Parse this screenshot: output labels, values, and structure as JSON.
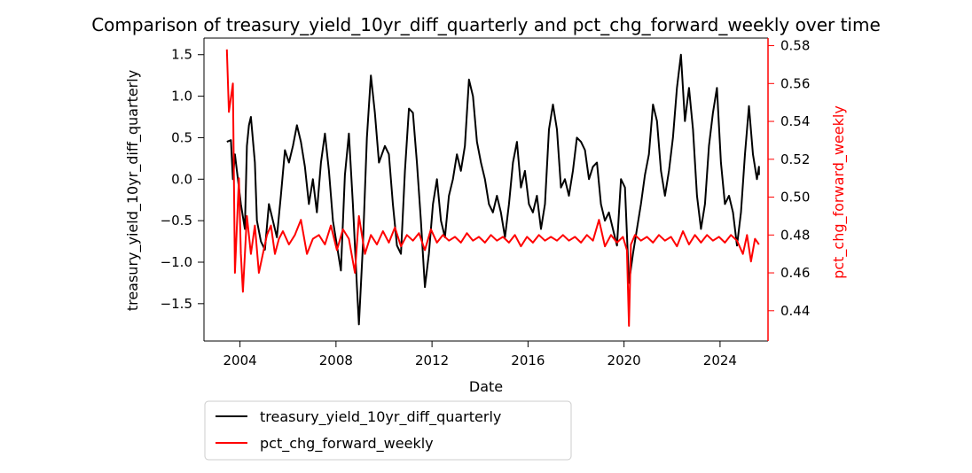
{
  "chart_data": {
    "type": "line",
    "title": "Comparison of treasury_yield_10yr_diff_quarterly and pct_chg_forward_weekly over time",
    "xlabel": "Date",
    "ylabel_left": "treasury_yield_10yr_diff_quarterly",
    "ylabel_right": "pct_chg_forward_weekly",
    "x_range": [
      "2002-07-01",
      "2025-12-31"
    ],
    "y_left_range": [
      -1.95,
      1.7
    ],
    "y_right_range": [
      0.424,
      0.584
    ],
    "x_ticks": [
      "2004",
      "2008",
      "2012",
      "2016",
      "2020",
      "2024"
    ],
    "y_left_ticks": [
      "−1.5",
      "−1.0",
      "−0.5",
      "0.0",
      "0.5",
      "1.0",
      "1.5"
    ],
    "y_right_ticks": [
      "0.44",
      "0.46",
      "0.48",
      "0.50",
      "0.52",
      "0.54",
      "0.56",
      "0.58"
    ],
    "grid": false,
    "legend_position": "below-left",
    "colors": {
      "left_series": "#000000",
      "right_series": "#ff0000",
      "right_axis": "#ff0000"
    },
    "series": [
      {
        "name": "treasury_yield_10yr_diff_quarterly",
        "axis": "left",
        "color": "#000000",
        "points": [
          [
            "2003-06",
            0.45
          ],
          [
            "2003-08",
            0.47
          ],
          [
            "2003-09",
            0.0
          ],
          [
            "2003-10",
            0.3
          ],
          [
            "2003-12",
            -0.1
          ],
          [
            "2004-01",
            -0.3
          ],
          [
            "2004-03",
            -0.6
          ],
          [
            "2004-04",
            0.4
          ],
          [
            "2004-05",
            0.65
          ],
          [
            "2004-06",
            0.75
          ],
          [
            "2004-08",
            0.2
          ],
          [
            "2004-09",
            -0.5
          ],
          [
            "2004-11",
            -0.75
          ],
          [
            "2005-01",
            -0.85
          ],
          [
            "2005-03",
            -0.3
          ],
          [
            "2005-05",
            -0.5
          ],
          [
            "2005-07",
            -0.7
          ],
          [
            "2005-09",
            -0.2
          ],
          [
            "2005-11",
            0.35
          ],
          [
            "2006-01",
            0.2
          ],
          [
            "2006-03",
            0.4
          ],
          [
            "2006-05",
            0.65
          ],
          [
            "2006-07",
            0.45
          ],
          [
            "2006-09",
            0.15
          ],
          [
            "2006-11",
            -0.3
          ],
          [
            "2007-01",
            0.0
          ],
          [
            "2007-03",
            -0.4
          ],
          [
            "2007-05",
            0.2
          ],
          [
            "2007-07",
            0.55
          ],
          [
            "2007-09",
            0.1
          ],
          [
            "2007-11",
            -0.5
          ],
          [
            "2008-01",
            -0.8
          ],
          [
            "2008-03",
            -1.1
          ],
          [
            "2008-05",
            0.05
          ],
          [
            "2008-07",
            0.55
          ],
          [
            "2008-09",
            -0.3
          ],
          [
            "2008-11",
            -1.3
          ],
          [
            "2008-12",
            -1.75
          ],
          [
            "2009-02",
            -0.8
          ],
          [
            "2009-04",
            0.5
          ],
          [
            "2009-06",
            1.25
          ],
          [
            "2009-08",
            0.8
          ],
          [
            "2009-10",
            0.2
          ],
          [
            "2010-01",
            0.4
          ],
          [
            "2010-03",
            0.3
          ],
          [
            "2010-05",
            -0.3
          ],
          [
            "2010-07",
            -0.8
          ],
          [
            "2010-09",
            -0.9
          ],
          [
            "2010-11",
            0.1
          ],
          [
            "2011-01",
            0.85
          ],
          [
            "2011-03",
            0.8
          ],
          [
            "2011-05",
            0.2
          ],
          [
            "2011-07",
            -0.5
          ],
          [
            "2011-09",
            -1.3
          ],
          [
            "2011-11",
            -0.9
          ],
          [
            "2012-01",
            -0.3
          ],
          [
            "2012-03",
            0.0
          ],
          [
            "2012-05",
            -0.5
          ],
          [
            "2012-07",
            -0.7
          ],
          [
            "2012-09",
            -0.2
          ],
          [
            "2012-11",
            0.0
          ],
          [
            "2013-01",
            0.3
          ],
          [
            "2013-03",
            0.1
          ],
          [
            "2013-05",
            0.4
          ],
          [
            "2013-07",
            1.2
          ],
          [
            "2013-09",
            1.0
          ],
          [
            "2013-11",
            0.45
          ],
          [
            "2014-01",
            0.2
          ],
          [
            "2014-03",
            0.0
          ],
          [
            "2014-05",
            -0.3
          ],
          [
            "2014-07",
            -0.4
          ],
          [
            "2014-09",
            -0.2
          ],
          [
            "2014-11",
            -0.4
          ],
          [
            "2015-01",
            -0.7
          ],
          [
            "2015-03",
            -0.3
          ],
          [
            "2015-05",
            0.2
          ],
          [
            "2015-07",
            0.45
          ],
          [
            "2015-09",
            -0.1
          ],
          [
            "2015-11",
            0.1
          ],
          [
            "2016-01",
            -0.3
          ],
          [
            "2016-03",
            -0.4
          ],
          [
            "2016-05",
            -0.2
          ],
          [
            "2016-07",
            -0.6
          ],
          [
            "2016-09",
            -0.3
          ],
          [
            "2016-11",
            0.6
          ],
          [
            "2017-01",
            0.9
          ],
          [
            "2017-03",
            0.6
          ],
          [
            "2017-05",
            -0.1
          ],
          [
            "2017-07",
            0.0
          ],
          [
            "2017-09",
            -0.2
          ],
          [
            "2017-11",
            0.1
          ],
          [
            "2018-01",
            0.5
          ],
          [
            "2018-03",
            0.45
          ],
          [
            "2018-05",
            0.35
          ],
          [
            "2018-07",
            0.0
          ],
          [
            "2018-09",
            0.15
          ],
          [
            "2018-11",
            0.2
          ],
          [
            "2019-01",
            -0.3
          ],
          [
            "2019-03",
            -0.5
          ],
          [
            "2019-05",
            -0.4
          ],
          [
            "2019-07",
            -0.6
          ],
          [
            "2019-09",
            -0.8
          ],
          [
            "2019-11",
            0.0
          ],
          [
            "2020-01",
            -0.1
          ],
          [
            "2020-03",
            -1.25
          ],
          [
            "2020-05",
            -0.9
          ],
          [
            "2020-07",
            -0.6
          ],
          [
            "2020-09",
            -0.3
          ],
          [
            "2020-11",
            0.05
          ],
          [
            "2021-01",
            0.3
          ],
          [
            "2021-03",
            0.9
          ],
          [
            "2021-05",
            0.7
          ],
          [
            "2021-07",
            0.1
          ],
          [
            "2021-09",
            -0.2
          ],
          [
            "2021-11",
            0.1
          ],
          [
            "2022-01",
            0.5
          ],
          [
            "2022-03",
            1.1
          ],
          [
            "2022-05",
            1.5
          ],
          [
            "2022-07",
            0.7
          ],
          [
            "2022-09",
            1.1
          ],
          [
            "2022-11",
            0.6
          ],
          [
            "2023-01",
            -0.2
          ],
          [
            "2023-03",
            -0.6
          ],
          [
            "2023-05",
            -0.3
          ],
          [
            "2023-07",
            0.4
          ],
          [
            "2023-09",
            0.8
          ],
          [
            "2023-11",
            1.1
          ],
          [
            "2024-01",
            0.2
          ],
          [
            "2024-03",
            -0.3
          ],
          [
            "2024-05",
            -0.2
          ],
          [
            "2024-07",
            -0.4
          ],
          [
            "2024-09",
            -0.8
          ],
          [
            "2024-11",
            -0.4
          ],
          [
            "2025-01",
            0.3
          ],
          [
            "2025-03",
            0.88
          ],
          [
            "2025-05",
            0.3
          ],
          [
            "2025-07",
            0.0
          ],
          [
            "2025-08",
            0.15
          ],
          [
            "2025-08",
            0.05
          ]
        ]
      },
      {
        "name": "pct_chg_forward_weekly",
        "axis": "right",
        "color": "#ff0000",
        "points": [
          [
            "2003-06",
            0.578
          ],
          [
            "2003-07",
            0.545
          ],
          [
            "2003-09",
            0.56
          ],
          [
            "2003-10",
            0.46
          ],
          [
            "2003-12",
            0.51
          ],
          [
            "2004-01",
            0.47
          ],
          [
            "2004-02",
            0.45
          ],
          [
            "2004-04",
            0.49
          ],
          [
            "2004-06",
            0.47
          ],
          [
            "2004-08",
            0.485
          ],
          [
            "2004-10",
            0.46
          ],
          [
            "2004-12",
            0.47
          ],
          [
            "2005-02",
            0.48
          ],
          [
            "2005-04",
            0.485
          ],
          [
            "2005-06",
            0.47
          ],
          [
            "2005-08",
            0.478
          ],
          [
            "2005-10",
            0.482
          ],
          [
            "2006-01",
            0.475
          ],
          [
            "2006-04",
            0.48
          ],
          [
            "2006-07",
            0.488
          ],
          [
            "2006-10",
            0.47
          ],
          [
            "2007-01",
            0.478
          ],
          [
            "2007-04",
            0.48
          ],
          [
            "2007-07",
            0.475
          ],
          [
            "2007-10",
            0.485
          ],
          [
            "2008-01",
            0.472
          ],
          [
            "2008-04",
            0.483
          ],
          [
            "2008-07",
            0.478
          ],
          [
            "2008-10",
            0.46
          ],
          [
            "2008-12",
            0.49
          ],
          [
            "2009-03",
            0.47
          ],
          [
            "2009-06",
            0.48
          ],
          [
            "2009-09",
            0.475
          ],
          [
            "2009-12",
            0.482
          ],
          [
            "2010-03",
            0.476
          ],
          [
            "2010-06",
            0.484
          ],
          [
            "2010-09",
            0.474
          ],
          [
            "2010-12",
            0.48
          ],
          [
            "2011-03",
            0.477
          ],
          [
            "2011-06",
            0.481
          ],
          [
            "2011-09",
            0.472
          ],
          [
            "2011-12",
            0.483
          ],
          [
            "2012-03",
            0.476
          ],
          [
            "2012-06",
            0.48
          ],
          [
            "2012-09",
            0.477
          ],
          [
            "2012-12",
            0.479
          ],
          [
            "2013-03",
            0.476
          ],
          [
            "2013-06",
            0.481
          ],
          [
            "2013-09",
            0.477
          ],
          [
            "2013-12",
            0.479
          ],
          [
            "2014-03",
            0.476
          ],
          [
            "2014-06",
            0.48
          ],
          [
            "2014-09",
            0.477
          ],
          [
            "2014-12",
            0.479
          ],
          [
            "2015-03",
            0.476
          ],
          [
            "2015-06",
            0.48
          ],
          [
            "2015-09",
            0.474
          ],
          [
            "2015-12",
            0.479
          ],
          [
            "2016-03",
            0.476
          ],
          [
            "2016-06",
            0.48
          ],
          [
            "2016-09",
            0.477
          ],
          [
            "2016-12",
            0.479
          ],
          [
            "2017-03",
            0.477
          ],
          [
            "2017-06",
            0.48
          ],
          [
            "2017-09",
            0.477
          ],
          [
            "2017-12",
            0.479
          ],
          [
            "2018-03",
            0.476
          ],
          [
            "2018-06",
            0.48
          ],
          [
            "2018-09",
            0.477
          ],
          [
            "2018-12",
            0.488
          ],
          [
            "2019-03",
            0.474
          ],
          [
            "2019-06",
            0.48
          ],
          [
            "2019-09",
            0.476
          ],
          [
            "2019-12",
            0.479
          ],
          [
            "2020-02",
            0.472
          ],
          [
            "2020-03",
            0.432
          ],
          [
            "2020-04",
            0.475
          ],
          [
            "2020-06",
            0.48
          ],
          [
            "2020-09",
            0.477
          ],
          [
            "2020-12",
            0.479
          ],
          [
            "2021-03",
            0.476
          ],
          [
            "2021-06",
            0.48
          ],
          [
            "2021-09",
            0.477
          ],
          [
            "2021-12",
            0.479
          ],
          [
            "2022-03",
            0.474
          ],
          [
            "2022-06",
            0.482
          ],
          [
            "2022-09",
            0.475
          ],
          [
            "2022-12",
            0.48
          ],
          [
            "2023-03",
            0.476
          ],
          [
            "2023-06",
            0.48
          ],
          [
            "2023-09",
            0.477
          ],
          [
            "2023-12",
            0.479
          ],
          [
            "2024-03",
            0.476
          ],
          [
            "2024-06",
            0.48
          ],
          [
            "2024-09",
            0.477
          ],
          [
            "2024-12",
            0.47
          ],
          [
            "2025-02",
            0.48
          ],
          [
            "2025-04",
            0.466
          ],
          [
            "2025-06",
            0.478
          ],
          [
            "2025-08",
            0.475
          ]
        ]
      }
    ]
  }
}
